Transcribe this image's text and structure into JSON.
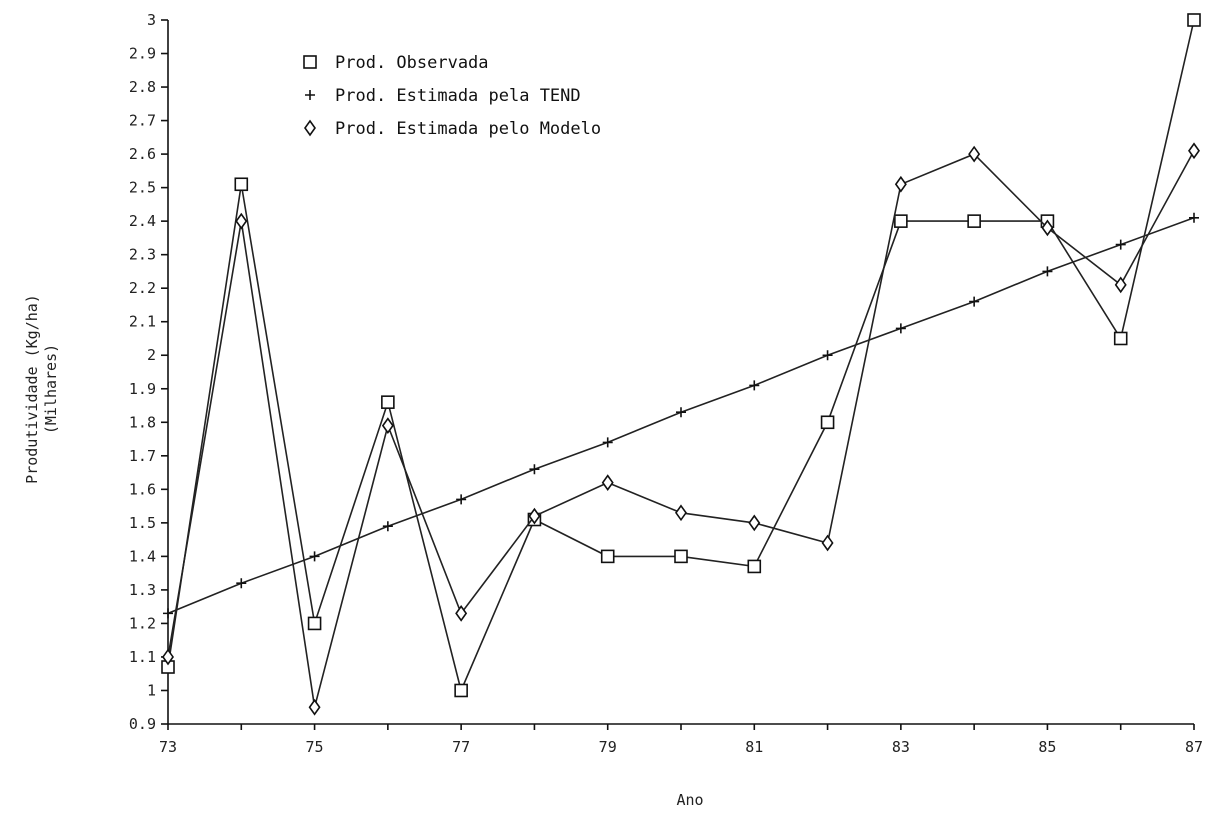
{
  "chart_data": {
    "type": "line",
    "title": "",
    "xlabel": "Ano",
    "ylabel": "Produtividade (Kg/ha)",
    "ylabel_sub": "(Milhares)",
    "x": [
      73,
      74,
      75,
      76,
      77,
      78,
      79,
      80,
      81,
      82,
      83,
      84,
      85,
      86,
      87
    ],
    "xlim": [
      73,
      87
    ],
    "ylim": [
      0.9,
      3
    ],
    "x_ticks": [
      "73",
      "75",
      "77",
      "79",
      "81",
      "83",
      "85",
      "87"
    ],
    "y_ticks": [
      "0.9",
      "1",
      "1.1",
      "1.2",
      "1.3",
      "1.4",
      "1.5",
      "1.6",
      "1.7",
      "1.8",
      "1.9",
      "2",
      "2.1",
      "2.2",
      "2.3",
      "2.4",
      "2.5",
      "2.6",
      "2.7",
      "2.8",
      "2.9",
      "3"
    ],
    "grid": false,
    "legend_position": "top-left",
    "series": [
      {
        "name": "Prod. Observada",
        "marker": "square",
        "values": [
          1.07,
          2.51,
          1.2,
          1.86,
          1.0,
          1.51,
          1.4,
          1.4,
          1.37,
          1.8,
          2.4,
          2.4,
          2.4,
          2.05,
          3.0
        ]
      },
      {
        "name": "Prod. Estimada pela TEND",
        "marker": "plus",
        "values": [
          1.23,
          1.32,
          1.4,
          1.49,
          1.57,
          1.66,
          1.74,
          1.83,
          1.91,
          2.0,
          2.08,
          2.16,
          2.25,
          2.33,
          2.41
        ]
      },
      {
        "name": "Prod. Estimada pelo Modelo",
        "marker": "diamond",
        "values": [
          1.1,
          2.4,
          0.95,
          1.79,
          1.23,
          1.52,
          1.62,
          1.53,
          1.5,
          1.44,
          2.51,
          2.6,
          2.38,
          2.21,
          2.61
        ]
      }
    ]
  }
}
